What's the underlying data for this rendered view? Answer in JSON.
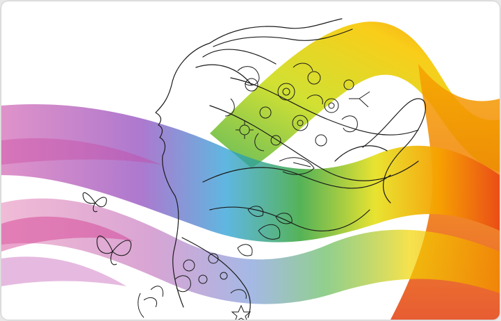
{
  "artwork": {
    "subject": "woman-profile-line-drawing",
    "background_color": "#ffffff",
    "ribbon_colors": [
      "#c8349c",
      "#9a3fb8",
      "#2c9fd8",
      "#3aa935",
      "#f0e000",
      "#f59a00",
      "#e84a1a"
    ],
    "line_color": "#1a1a1a",
    "icons": [
      "butterfly-icon",
      "butterfly-icon",
      "flower-icon",
      "leaf-icon",
      "star-icon"
    ]
  }
}
